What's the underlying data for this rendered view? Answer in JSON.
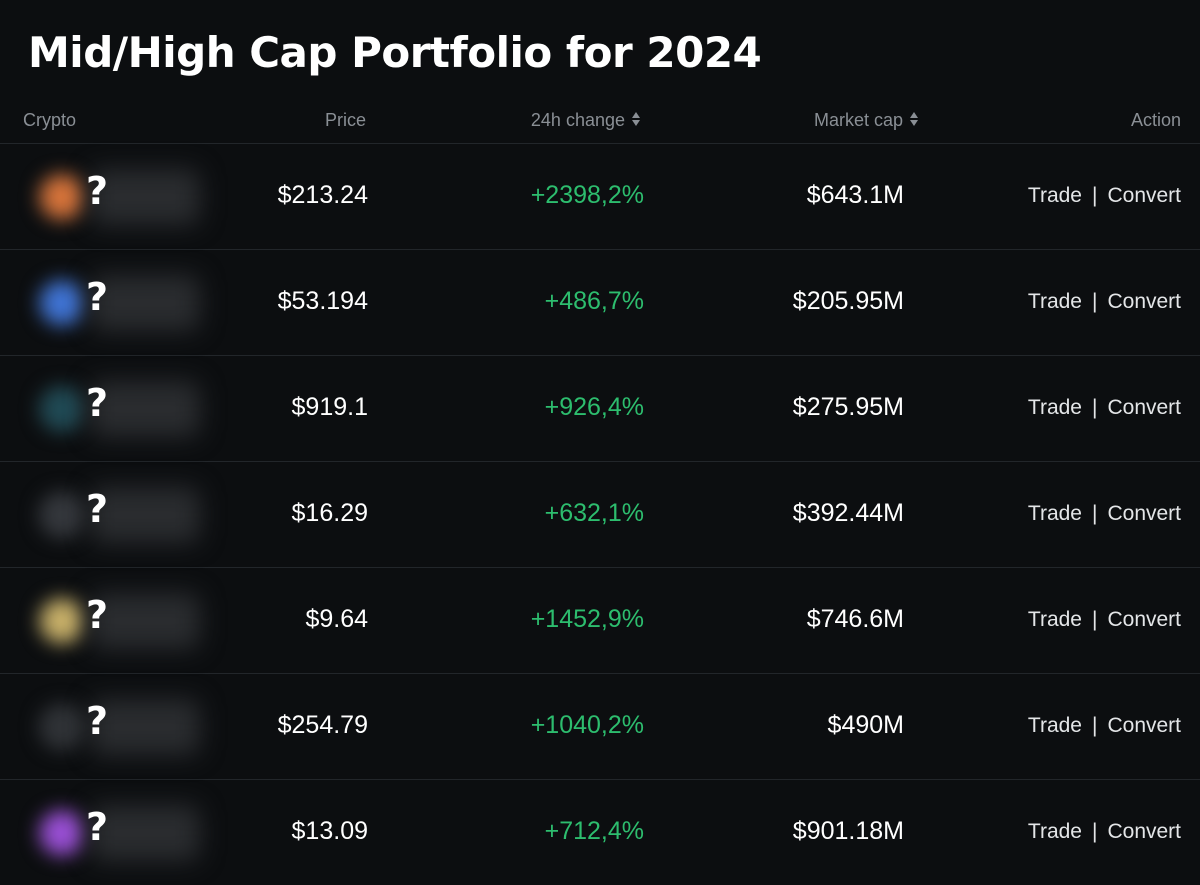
{
  "page": {
    "title": "Mid/High Cap Portfolio for 2024"
  },
  "table": {
    "columns": {
      "crypto": "Crypto",
      "price": "Price",
      "change": "24h change",
      "market_cap": "Market cap",
      "action": "Action"
    },
    "rows": [
      {
        "logo_color": "#d8743a",
        "name_hidden": "?",
        "price": "$213.24",
        "change": "+2398,2%",
        "market_cap": "$643.1M",
        "trade": "Trade",
        "separator": "|",
        "convert": "Convert"
      },
      {
        "logo_color": "#3f74d6",
        "name_hidden": "?",
        "price": "$53.194",
        "change": "+486,7%",
        "market_cap": "$205.95M",
        "trade": "Trade",
        "separator": "|",
        "convert": "Convert"
      },
      {
        "logo_color": "#1f4a55",
        "name_hidden": "?",
        "price": "$919.1",
        "change": "+926,4%",
        "market_cap": "$275.95M",
        "trade": "Trade",
        "separator": "|",
        "convert": "Convert"
      },
      {
        "logo_color": "#34373c",
        "name_hidden": "?",
        "price": "$16.29",
        "change": "+632,1%",
        "market_cap": "$392.44M",
        "trade": "Trade",
        "separator": "|",
        "convert": "Convert"
      },
      {
        "logo_color": "#c9b169",
        "name_hidden": "?",
        "price": "$9.64",
        "change": "+1452,9%",
        "market_cap": "$746.6M",
        "trade": "Trade",
        "separator": "|",
        "convert": "Convert"
      },
      {
        "logo_color": "#2f3236",
        "name_hidden": "?",
        "price": "$254.79",
        "change": "+1040,2%",
        "market_cap": "$490M",
        "trade": "Trade",
        "separator": "|",
        "convert": "Convert"
      },
      {
        "logo_color": "#9a4fd6",
        "name_hidden": "?",
        "price": "$13.09",
        "change": "+712,4%",
        "market_cap": "$901.18M",
        "trade": "Trade",
        "separator": "|",
        "convert": "Convert"
      }
    ]
  },
  "colors": {
    "background": "#0c0e10",
    "positive": "#2dbd6e",
    "header_text": "#8a8f95",
    "divider": "#22262a"
  }
}
